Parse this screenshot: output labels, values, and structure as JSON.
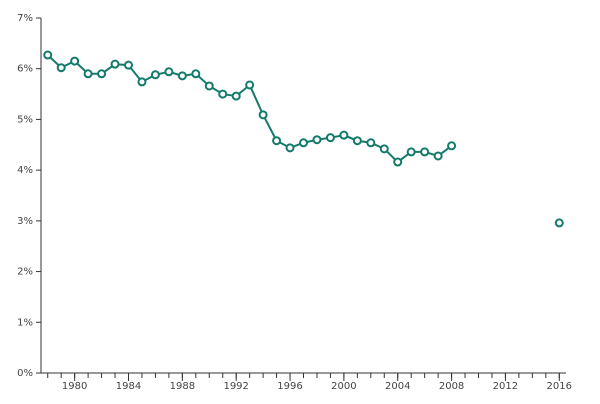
{
  "chart_data": {
    "type": "line",
    "x": [
      1978,
      1979,
      1980,
      1981,
      1982,
      1983,
      1984,
      1985,
      1986,
      1987,
      1988,
      1989,
      1990,
      1991,
      1992,
      1993,
      1994,
      1995,
      1996,
      1997,
      1998,
      1999,
      2000,
      2001,
      2002,
      2003,
      2004,
      2005,
      2006,
      2007,
      2008,
      2009,
      2010,
      2011,
      2012,
      2013,
      2014,
      2015,
      2016
    ],
    "series": [
      {
        "color": "#137a6b",
        "values": [
          6.27,
          6.02,
          6.15,
          5.9,
          5.9,
          6.09,
          6.07,
          5.74,
          5.88,
          5.94,
          5.86,
          5.9,
          5.66,
          5.5,
          5.46,
          5.68,
          5.09,
          4.58,
          4.44,
          4.54,
          4.6,
          4.64,
          4.69,
          4.58,
          4.54,
          4.42,
          4.16,
          4.36,
          4.36,
          4.28,
          4.48,
          null,
          null,
          null,
          null,
          null,
          null,
          null,
          2.96
        ]
      }
    ],
    "xlim": [
      1977.5,
      2016.5
    ],
    "xticks": [
      1980,
      1984,
      1988,
      1992,
      1996,
      2000,
      2004,
      2008,
      2012,
      2016
    ],
    "xminorticks": [
      1978,
      1979,
      1980,
      1981,
      1982,
      1983,
      1984,
      1985,
      1986,
      1987,
      1988,
      1989,
      1990,
      1991,
      1992,
      1993,
      1994,
      1995,
      1996,
      1997,
      1998,
      1999,
      2000,
      2001,
      2002,
      2003,
      2004,
      2005,
      2006,
      2007,
      2008,
      2009,
      2010,
      2011,
      2012,
      2013,
      2014,
      2015,
      2016
    ],
    "ylim": [
      0,
      7
    ],
    "yticks": [
      {
        "value": 0,
        "label": "0%"
      },
      {
        "value": 1,
        "label": "1%"
      },
      {
        "value": 2,
        "label": "2%"
      },
      {
        "value": 3,
        "label": "3%"
      },
      {
        "value": 4,
        "label": "4%"
      },
      {
        "value": 5,
        "label": "5%"
      },
      {
        "value": 6,
        "label": "6%"
      },
      {
        "value": 7,
        "label": "7%"
      }
    ]
  }
}
